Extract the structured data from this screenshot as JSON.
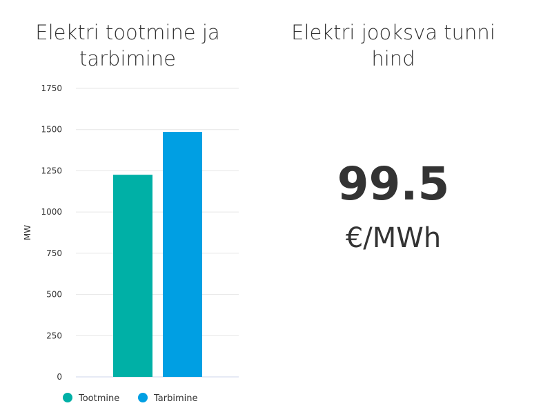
{
  "left_panel": {
    "title": "Elektri tootmine ja tarbimine"
  },
  "right_panel": {
    "title": "Elektri jooksva tunni hind",
    "value": "99.5",
    "unit": "€/MWh"
  },
  "chart_data": {
    "type": "bar",
    "title": "Elektri tootmine ja tarbimine",
    "ylabel": "MW",
    "xlabel": "",
    "ylim": [
      0,
      1750
    ],
    "yticks": [
      0,
      250,
      500,
      750,
      1000,
      1250,
      1500,
      1750
    ],
    "grid": true,
    "legend_placement": "bottom-left",
    "series": [
      {
        "name": "Tootmine",
        "value": 1226,
        "color": "#00b0a6"
      },
      {
        "name": "Tarbimine",
        "value": 1486,
        "color": "#009fe3"
      }
    ]
  }
}
